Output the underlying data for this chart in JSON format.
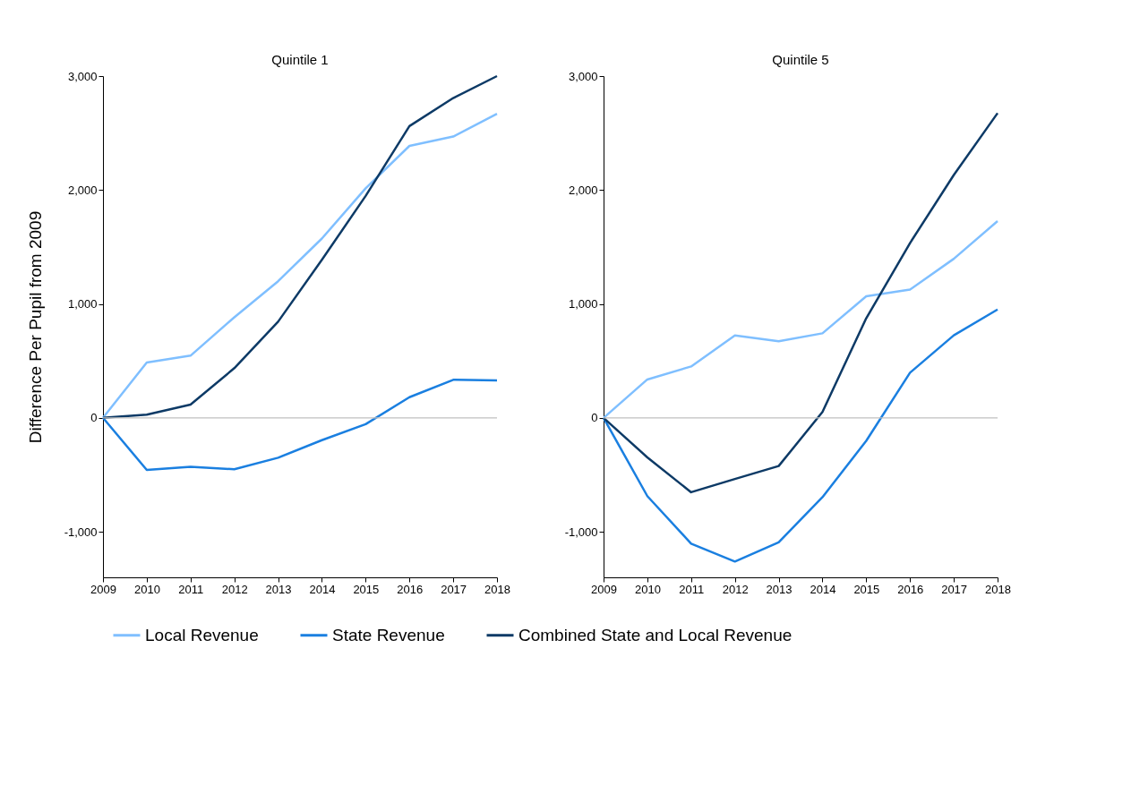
{
  "chart_data": [
    {
      "type": "line",
      "title": "Quintile 1",
      "ylabel": "Difference Per Pupil from 2009",
      "x": [
        2009,
        2010,
        2011,
        2012,
        2013,
        2014,
        2015,
        2016,
        2017,
        2018
      ],
      "xlim": [
        2009,
        2018
      ],
      "xticks": [
        2009,
        2010,
        2011,
        2012,
        2013,
        2014,
        2015,
        2016,
        2017,
        2018
      ],
      "ylim": [
        -1400,
        3000
      ],
      "yticks": [
        {
          "value": -1000,
          "label": "-1,000"
        },
        0,
        {
          "value": 1000,
          "label": "1,000"
        },
        {
          "value": 2000,
          "label": "2,000"
        },
        {
          "value": 3000,
          "label": "3,000"
        }
      ],
      "grid": false,
      "legend": "bottom",
      "marker": "none",
      "line_style": "solid",
      "ref_lines": [
        {
          "axis": "y",
          "value": 0,
          "color": "#bfbfbf"
        }
      ],
      "series": [
        {
          "name": "Local Revenue",
          "color": "#7fbfff",
          "values": [
            0,
            485,
            546,
            883,
            1199,
            1574,
            2015,
            2387,
            2469,
            2669
          ]
        },
        {
          "name": "State Revenue",
          "color": "#1a7fe0",
          "values": [
            0,
            -457,
            -429,
            -451,
            -350,
            -196,
            -55,
            181,
            334,
            328
          ]
        },
        {
          "name": "Combined State and Local Revenue",
          "color": "#0d3a66",
          "values": [
            0,
            28,
            117,
            436,
            844,
            1387,
            1948,
            2561,
            2807,
            3000
          ]
        }
      ]
    },
    {
      "type": "line",
      "title": "Quintile 5",
      "x": [
        2009,
        2010,
        2011,
        2012,
        2013,
        2014,
        2015,
        2016,
        2017,
        2018
      ],
      "xlim": [
        2009,
        2018
      ],
      "xticks": [
        2009,
        2010,
        2011,
        2012,
        2013,
        2014,
        2015,
        2016,
        2017,
        2018
      ],
      "ylim": [
        -1400,
        3000
      ],
      "yticks": [
        {
          "value": -1000,
          "label": "-1,000"
        },
        0,
        {
          "value": 1000,
          "label": "1,000"
        },
        {
          "value": 2000,
          "label": "2,000"
        },
        {
          "value": 3000,
          "label": "3,000"
        }
      ],
      "grid": false,
      "legend": "bottom",
      "marker": "none",
      "line_style": "solid",
      "ref_lines": [
        {
          "axis": "y",
          "value": 0,
          "color": "#bfbfbf"
        }
      ],
      "series": [
        {
          "name": "Local Revenue",
          "color": "#7fbfff",
          "values": [
            0,
            337,
            451,
            724,
            672,
            742,
            1067,
            1126,
            1396,
            1727
          ]
        },
        {
          "name": "State Revenue",
          "color": "#1a7fe0",
          "values": [
            0,
            -687,
            -1104,
            -1261,
            -1092,
            -696,
            -202,
            396,
            724,
            951
          ]
        },
        {
          "name": "Combined State and Local Revenue",
          "color": "#0d3a66",
          "values": [
            0,
            -347,
            -653,
            -537,
            -423,
            52,
            874,
            1534,
            2132,
            2675
          ]
        }
      ]
    }
  ]
}
